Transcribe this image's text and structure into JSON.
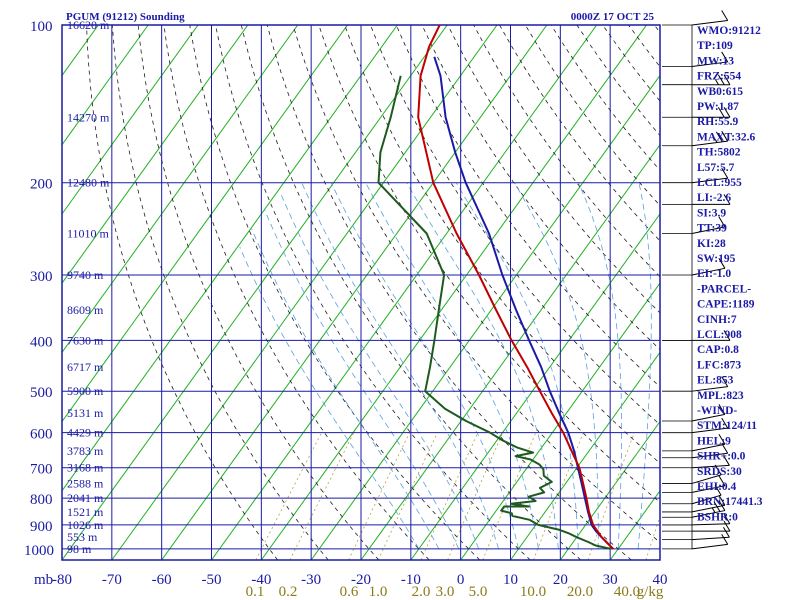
{
  "header": {
    "title": "PGUM (91212) Sounding",
    "time": "0000Z 17 OCT 25"
  },
  "colors": {
    "frame": "#1a1aa6",
    "isotherm": "#22b022",
    "dry_adiabat": "#1e1e1e",
    "moist_adiabat": "#5aa0e0",
    "mixing_ratio": "#b5a33c",
    "parcel": "#c00000",
    "temperature": "#1a1aa6",
    "dewpoint": "#1e5a1e",
    "label": "#1a1aa6"
  },
  "chart_data": {
    "type": "line",
    "x_label": "",
    "y_unit": "mb",
    "x_ticks": [
      -80,
      -70,
      -60,
      -50,
      -40,
      -30,
      -20,
      -10,
      0,
      10,
      20,
      30,
      40
    ],
    "x_tick_labels": [
      "-80",
      "-70",
      "-60",
      "-50",
      "-40",
      "-30",
      "-20",
      "-10",
      "0",
      "10",
      "20",
      "30",
      "40"
    ],
    "y_ticks": [
      100,
      200,
      300,
      400,
      500,
      600,
      700,
      800,
      900,
      1000
    ],
    "y_tick_labels": [
      "100",
      "200",
      "300",
      "400",
      "500",
      "600",
      "700",
      "800",
      "900",
      "1000"
    ],
    "height_labels": [
      {
        "p": 100,
        "label": "16620 m"
      },
      {
        "p": 150,
        "label": "14270 m"
      },
      {
        "p": 200,
        "label": "12480 m"
      },
      {
        "p": 250,
        "label": "11010 m"
      },
      {
        "p": 300,
        "label": "9740 m"
      },
      {
        "p": 350,
        "label": "8609 m"
      },
      {
        "p": 400,
        "label": "7630 m"
      },
      {
        "p": 450,
        "label": "6717 m"
      },
      {
        "p": 500,
        "label": "5900 m"
      },
      {
        "p": 550,
        "label": "5131 m"
      },
      {
        "p": 600,
        "label": "4429 m"
      },
      {
        "p": 650,
        "label": "3783 m"
      },
      {
        "p": 700,
        "label": "3168 m"
      },
      {
        "p": 750,
        "label": "2588 m"
      },
      {
        "p": 800,
        "label": "2041 m"
      },
      {
        "p": 850,
        "label": "1521 m"
      },
      {
        "p": 900,
        "label": "1026 m"
      },
      {
        "p": 950,
        "label": "553 m"
      },
      {
        "p": 1000,
        "label": "98 m"
      }
    ],
    "mixing_ratio_labels": [
      "0.1",
      "0.2",
      "0.6",
      "1.0",
      "2.0",
      "3.0",
      "5.0",
      "10.0",
      "20.0",
      "40.0",
      "g/kg"
    ],
    "series": [
      {
        "key": "temperature",
        "points": [
          {
            "p": 1000,
            "t": 29.0
          },
          {
            "p": 975,
            "t": 27.0
          },
          {
            "p": 950,
            "t": 25.0
          },
          {
            "p": 925,
            "t": 23.0
          },
          {
            "p": 900,
            "t": 21.2
          },
          {
            "p": 850,
            "t": 18.6
          },
          {
            "p": 800,
            "t": 16.0
          },
          {
            "p": 750,
            "t": 13.2
          },
          {
            "p": 700,
            "t": 10.2
          },
          {
            "p": 650,
            "t": 7.0
          },
          {
            "p": 600,
            "t": 3.2
          },
          {
            "p": 550,
            "t": -1.5
          },
          {
            "p": 500,
            "t": -6.5
          },
          {
            "p": 450,
            "t": -11.7
          },
          {
            "p": 400,
            "t": -18.0
          },
          {
            "p": 350,
            "t": -25.0
          },
          {
            "p": 300,
            "t": -32.8
          },
          {
            "p": 250,
            "t": -41.5
          },
          {
            "p": 200,
            "t": -53.5
          },
          {
            "p": 175,
            "t": -60.0
          },
          {
            "p": 150,
            "t": -67.0
          },
          {
            "p": 125,
            "t": -74.0
          },
          {
            "p": 115,
            "t": -78.0
          }
        ]
      },
      {
        "key": "parcel",
        "points": [
          {
            "p": 1000,
            "t": 29.0
          },
          {
            "p": 950,
            "t": 25.0
          },
          {
            "p": 900,
            "t": 21.5
          },
          {
            "p": 850,
            "t": 18.8
          },
          {
            "p": 800,
            "t": 16.3
          },
          {
            "p": 750,
            "t": 13.5
          },
          {
            "p": 700,
            "t": 10.5
          },
          {
            "p": 650,
            "t": 6.5
          },
          {
            "p": 600,
            "t": 2.2
          },
          {
            "p": 550,
            "t": -3.0
          },
          {
            "p": 500,
            "t": -8.5
          },
          {
            "p": 450,
            "t": -14.5
          },
          {
            "p": 400,
            "t": -21.5
          },
          {
            "p": 350,
            "t": -29.0
          },
          {
            "p": 300,
            "t": -37.5
          },
          {
            "p": 250,
            "t": -48.0
          },
          {
            "p": 200,
            "t": -60.0
          },
          {
            "p": 150,
            "t": -72.5
          },
          {
            "p": 125,
            "t": -78.0
          },
          {
            "p": 110,
            "t": -80.5
          },
          {
            "p": 100,
            "t": -81.5
          }
        ]
      },
      {
        "key": "dewpoint",
        "points": [
          {
            "p": 1000,
            "t": 28.5
          },
          {
            "p": 985,
            "t": 25.0
          },
          {
            "p": 970,
            "t": 23.0
          },
          {
            "p": 950,
            "t": 20.0
          },
          {
            "p": 935,
            "t": 18.0
          },
          {
            "p": 920,
            "t": 15.5
          },
          {
            "p": 900,
            "t": 10.5
          },
          {
            "p": 880,
            "t": 8.0
          },
          {
            "p": 865,
            "t": 4.0
          },
          {
            "p": 855,
            "t": 3.5
          },
          {
            "p": 845,
            "t": 1.0
          },
          {
            "p": 830,
            "t": 1.0
          },
          {
            "p": 830,
            "t": 6.0
          },
          {
            "p": 820,
            "t": 2.0
          },
          {
            "p": 810,
            "t": 6.5
          },
          {
            "p": 795,
            "t": 4.5
          },
          {
            "p": 780,
            "t": 7.0
          },
          {
            "p": 765,
            "t": 5.5
          },
          {
            "p": 745,
            "t": 7.0
          },
          {
            "p": 725,
            "t": 4.5
          },
          {
            "p": 705,
            "t": 3.5
          },
          {
            "p": 690,
            "t": 2.0
          },
          {
            "p": 675,
            "t": -0.5
          },
          {
            "p": 665,
            "t": -4.0
          },
          {
            "p": 655,
            "t": -1.0
          },
          {
            "p": 640,
            "t": -5.0
          },
          {
            "p": 620,
            "t": -9.0
          },
          {
            "p": 600,
            "t": -12.5
          },
          {
            "p": 570,
            "t": -19.0
          },
          {
            "p": 540,
            "t": -25.0
          },
          {
            "p": 500,
            "t": -31.5
          },
          {
            "p": 450,
            "t": -34.0
          },
          {
            "p": 400,
            "t": -37.0
          },
          {
            "p": 350,
            "t": -40.5
          },
          {
            "p": 300,
            "t": -44.5
          },
          {
            "p": 250,
            "t": -54.0
          },
          {
            "p": 200,
            "t": -71.0
          },
          {
            "p": 175,
            "t": -75.0
          },
          {
            "p": 150,
            "t": -78.0
          },
          {
            "p": 125,
            "t": -82.0
          }
        ]
      }
    ],
    "wind_barbs": [
      {
        "p": 1000,
        "dir": 250,
        "spd": 10
      },
      {
        "p": 960,
        "dir": 260,
        "spd": 10
      },
      {
        "p": 925,
        "dir": 270,
        "spd": 10
      },
      {
        "p": 900,
        "dir": 265,
        "spd": 10
      },
      {
        "p": 870,
        "dir": 240,
        "spd": 15
      },
      {
        "p": 850,
        "dir": 240,
        "spd": 10
      },
      {
        "p": 820,
        "dir": 230,
        "spd": 10
      },
      {
        "p": 780,
        "dir": 240,
        "spd": 10
      },
      {
        "p": 750,
        "dir": 230,
        "spd": 10
      },
      {
        "p": 700,
        "dir": 260,
        "spd": 10
      },
      {
        "p": 670,
        "dir": 250,
        "spd": 10
      },
      {
        "p": 650,
        "dir": 240,
        "spd": 10
      },
      {
        "p": 600,
        "dir": 250,
        "spd": 10
      },
      {
        "p": 570,
        "dir": 240,
        "spd": 10
      },
      {
        "p": 500,
        "dir": 250,
        "spd": 10
      },
      {
        "p": 400,
        "dir": 270,
        "spd": 10
      },
      {
        "p": 300,
        "dir": 240,
        "spd": 10
      },
      {
        "p": 250,
        "dir": 240,
        "spd": 10
      },
      {
        "p": 220,
        "dir": 270,
        "spd": 10
      },
      {
        "p": 200,
        "dir": 250,
        "spd": 10
      },
      {
        "p": 170,
        "dir": 250,
        "spd": 15
      },
      {
        "p": 150,
        "dir": 270,
        "spd": 20
      },
      {
        "p": 130,
        "dir": 270,
        "spd": 15
      },
      {
        "p": 120,
        "dir": 250,
        "spd": 10
      },
      {
        "p": 100,
        "dir": 250,
        "spd": 10
      }
    ]
  },
  "indices": [
    "WMO:91212",
    "TP:109",
    "MW:13",
    "FRZ:554",
    "WB0:615",
    "PW:1.87",
    "RH:55.9",
    "MAXT:32.6",
    "TH:5802",
    "L57:5.7",
    "LCL:955",
    "LI:-2.6",
    "SI:3.9",
    "TT:39",
    "KI:28",
    "SW:195",
    "EI:-1.0",
    "-PARCEL-",
    "CAPE:1189",
    "CINH:7",
    "LCL:908",
    "CAP:0.8",
    "LFC:873",
    "EL:853",
    "MPL:823",
    "-WIND-",
    "STM:124/11",
    "HEL:9",
    "SHR+:0.0",
    "SRDS:30",
    "EHI:0.4",
    "BRN:17441.3",
    "BSHR:0"
  ]
}
